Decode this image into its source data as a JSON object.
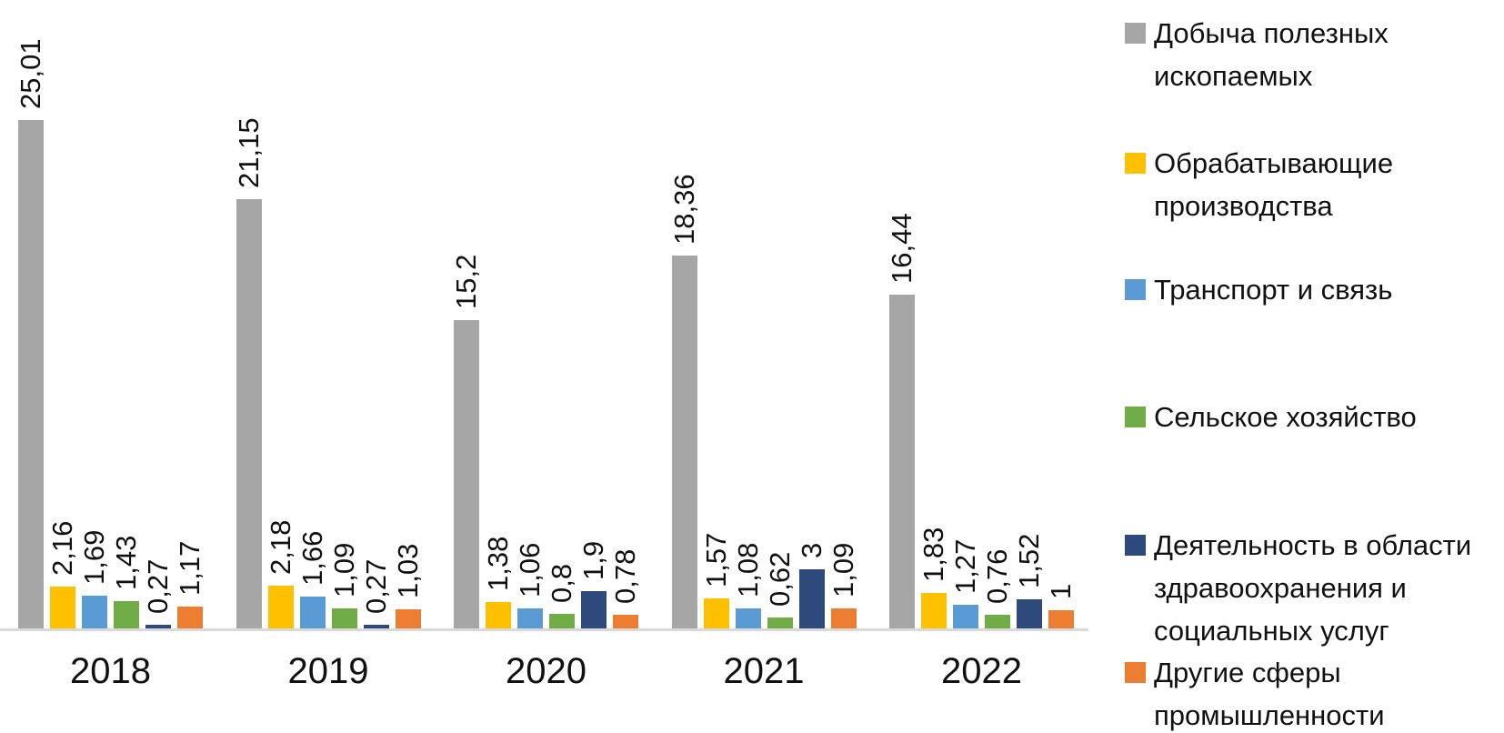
{
  "chart_data": {
    "type": "bar",
    "title": "",
    "xlabel": "",
    "ylabel": "",
    "categories": [
      "2018",
      "2019",
      "2020",
      "2021",
      "2022"
    ],
    "series": [
      {
        "name": "Добыча полезных ископаемых",
        "color": "#a6a6a6",
        "values": [
          25.01,
          21.15,
          15.2,
          18.36,
          16.44
        ],
        "labels": [
          "25,01",
          "21,15",
          "15,2",
          "18,36",
          "16,44"
        ]
      },
      {
        "name": "Обрабатывающие производства",
        "color": "#ffc000",
        "values": [
          2.16,
          2.18,
          1.38,
          1.57,
          1.83
        ],
        "labels": [
          "2,16",
          "2,18",
          "1,38",
          "1,57",
          "1,83"
        ]
      },
      {
        "name": "Транспорт и связь",
        "color": "#5b9bd5",
        "values": [
          1.69,
          1.66,
          1.06,
          1.08,
          1.27
        ],
        "labels": [
          "1,69",
          "1,66",
          "1,06",
          "1,08",
          "1,27"
        ]
      },
      {
        "name": "Сельское хозяйство",
        "color": "#70ad47",
        "values": [
          1.43,
          1.09,
          0.8,
          0.62,
          0.76
        ],
        "labels": [
          "1,43",
          "1,09",
          "0,8",
          "0,62",
          "0,76"
        ]
      },
      {
        "name": "Деятельность в области здравоохранения и социальных услуг",
        "color": "#2e4a7d",
        "values": [
          0.27,
          0.27,
          1.9,
          3,
          1.52
        ],
        "labels": [
          "0,27",
          "0,27",
          "1,9",
          "3",
          "1,52"
        ]
      },
      {
        "name": "Другие сферы промышленности",
        "color": "#ed7d31",
        "values": [
          1.17,
          1.03,
          0.78,
          1.09,
          1
        ],
        "labels": [
          "1,17",
          "1,03",
          "0,78",
          "1,09",
          "1"
        ]
      }
    ],
    "ylim": [
      0,
      25.01
    ],
    "grid": false,
    "y_axis_visible": false,
    "legend_position": "right",
    "value_label_rotation": -90,
    "decimal_separator": ","
  }
}
